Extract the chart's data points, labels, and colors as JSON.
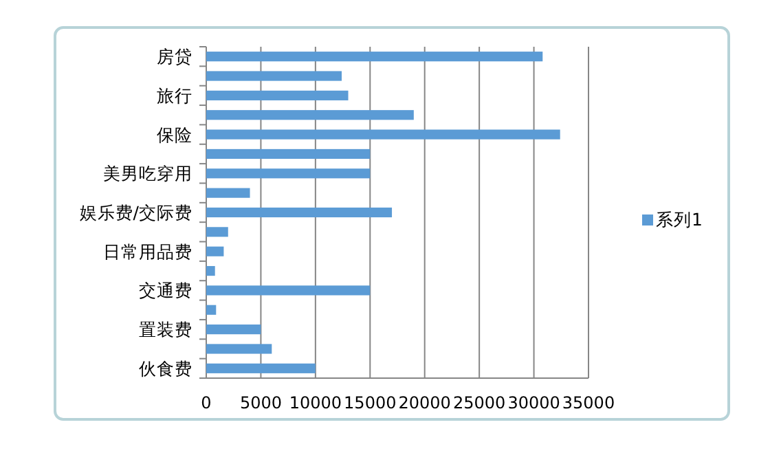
{
  "chart_data": {
    "type": "bar",
    "orientation": "horizontal",
    "categories": [
      "房贷",
      null,
      "旅行",
      null,
      "保险",
      null,
      "美男吃穿用",
      null,
      "娱乐费/交际费",
      null,
      "日常用品费",
      null,
      "交通费",
      null,
      "置装费",
      null,
      "伙食费"
    ],
    "series": [
      {
        "name": "系列1",
        "color": "#5b9bd5",
        "values": [
          30800,
          12400,
          13000,
          19000,
          32400,
          15000,
          15000,
          4000,
          17000,
          2000,
          1600,
          800,
          15000,
          900,
          5000,
          6000,
          10000
        ]
      }
    ],
    "xlim": [
      0,
      35000
    ],
    "xticks": [
      0,
      5000,
      10000,
      15000,
      20000,
      25000,
      30000,
      35000
    ],
    "grid": "x",
    "legend": "right"
  }
}
